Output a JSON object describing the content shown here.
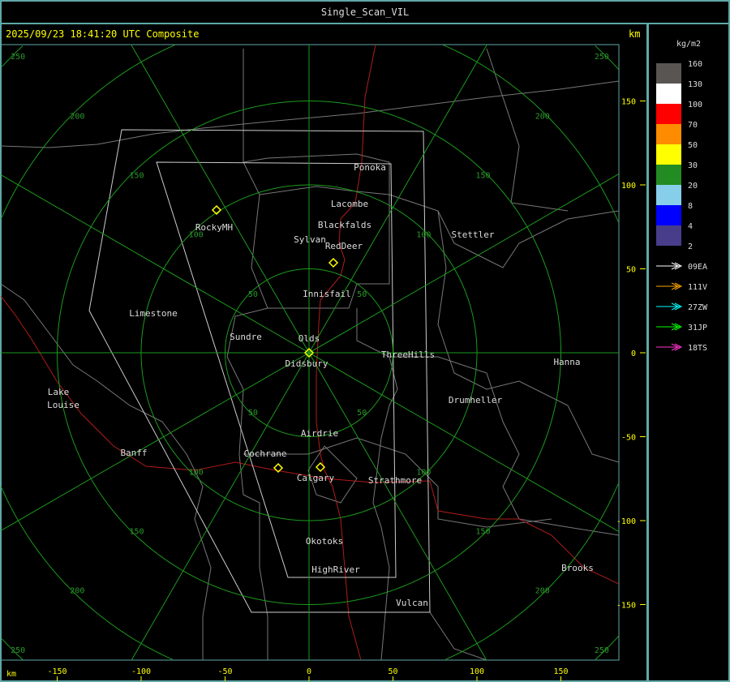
{
  "window": {
    "title": "Single_Scan_VIL"
  },
  "header": {
    "timestamp": "2025/09/23 18:41:20 UTC Composite",
    "unit": "km"
  },
  "axes": {
    "x_unit": "km",
    "y_unit": "km",
    "x_ticks": [
      "-150",
      "-100",
      "-50",
      "0",
      "50",
      "100",
      "150"
    ],
    "y_ticks": [
      "150",
      "100",
      "50",
      "0",
      "-50",
      "-100",
      "-150"
    ],
    "range_rings": [
      "50",
      "100",
      "150",
      "200",
      "250"
    ]
  },
  "legend": {
    "unit": "kg/m2",
    "levels": [
      "160",
      "130",
      "100",
      "70",
      "50",
      "30",
      "20",
      "8",
      "4",
      "2"
    ],
    "colors": [
      "#595553",
      "#ffffff",
      "#ff0000",
      "#ff8c00",
      "#ffff00",
      "#228b22",
      "#87ceeb",
      "#0000ff",
      "#483d8b"
    ],
    "radars": [
      {
        "name": "09EA",
        "color": "#ffffff"
      },
      {
        "name": "111V",
        "color": "#ffa500"
      },
      {
        "name": "27ZW",
        "color": "#00ffff"
      },
      {
        "name": "31JP",
        "color": "#00ff00"
      },
      {
        "name": "18TS",
        "color": "#ff33cc"
      }
    ]
  },
  "places": [
    "Ponoka",
    "Lacombe",
    "Blackfalds",
    "Sylvan",
    "RedDeer",
    "RockyMH",
    "Innisfail",
    "Limestone",
    "Sundre",
    "Olds",
    "Didsbury",
    "ThreeHills",
    "Stettler",
    "Hanna",
    "Drumheller",
    "Lake",
    "Louise",
    "Banff",
    "Airdrie",
    "Cochrane",
    "Calgary",
    "Strathmore",
    "Okotoks",
    "HighRiver",
    "Vulcan",
    "Brooks"
  ]
}
